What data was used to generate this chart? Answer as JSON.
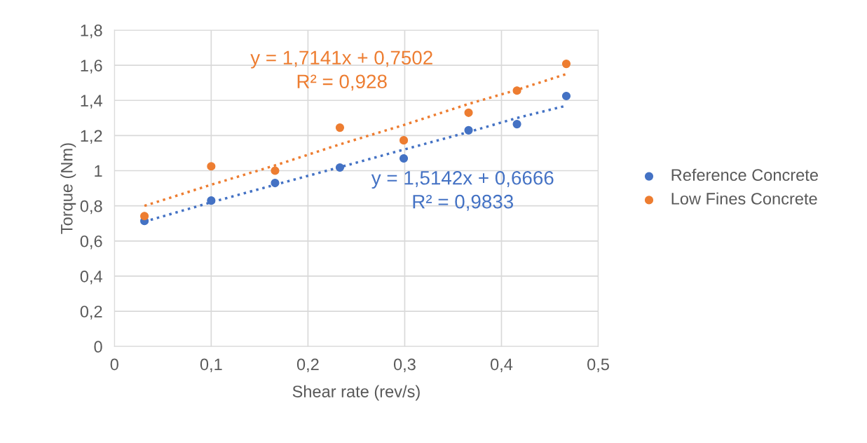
{
  "chart_data": {
    "type": "scatter",
    "xlabel": "Shear rate (rev/s)",
    "ylabel": "Torque (Nm)",
    "xlim": [
      0,
      0.5
    ],
    "ylim": [
      0,
      1.8
    ],
    "xticks": [
      0,
      {
        "value": 0.1,
        "label": "0,1"
      },
      {
        "value": 0.2,
        "label": "0,2"
      },
      {
        "value": 0.3,
        "label": "0,3"
      },
      {
        "value": 0.4,
        "label": "0,4"
      },
      {
        "value": 0.5,
        "label": "0,5"
      }
    ],
    "yticks": [
      0,
      {
        "value": 0.2,
        "label": "0,2"
      },
      {
        "value": 0.4,
        "label": "0,4"
      },
      {
        "value": 0.6,
        "label": "0,6"
      },
      {
        "value": 0.8,
        "label": "0,8"
      },
      1,
      {
        "value": 1.2,
        "label": "1,2"
      },
      {
        "value": 1.4,
        "label": "1,4"
      },
      {
        "value": 1.6,
        "label": "1,6"
      },
      {
        "value": 1.8,
        "label": "1,8"
      }
    ],
    "grid": true,
    "legend": "right",
    "marker": "circle",
    "x": [
      0.031,
      0.1,
      0.166,
      0.233,
      0.299,
      0.366,
      0.416,
      0.467
    ],
    "series": [
      {
        "name": "Reference Concrete",
        "color": "#4472c4",
        "values": [
          0.714,
          0.83,
          0.93,
          1.018,
          1.07,
          1.23,
          1.265,
          1.425
        ]
      },
      {
        "name": "Low Fines Concrete",
        "color": "#ed7d31",
        "values": [
          0.742,
          1.025,
          1.0,
          1.245,
          1.173,
          1.33,
          1.456,
          1.608
        ]
      },
      {
        "type": "line",
        "marker": "none",
        "line_style": "dotted",
        "color": "#ed7d31",
        "values": [
          0.8,
          0.92,
          1.03,
          1.15,
          1.26,
          1.38,
          1.46,
          1.55
        ]
      },
      {
        "type": "line",
        "marker": "none",
        "line_style": "dotted",
        "color": "#4472c4",
        "values": [
          0.71,
          0.82,
          0.92,
          1.02,
          1.12,
          1.22,
          1.3,
          1.37
        ]
      }
    ],
    "annotations": [
      "y = 1,7141x + 0,7502\nR² = 0,928",
      "y = 1,5142x + 0,6666\nR² = 0,9833"
    ]
  }
}
